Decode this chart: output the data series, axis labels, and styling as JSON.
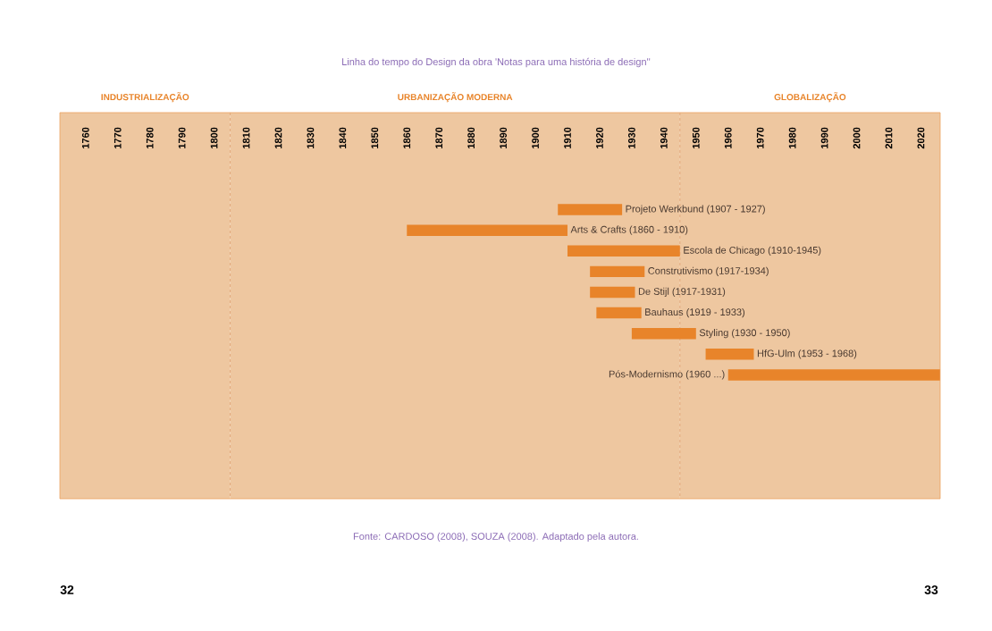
{
  "chart_data": {
    "type": "bar",
    "orientation": "horizontal",
    "title": "Linha do tempo do Design da obra 'Notas para uma história de design''",
    "categories": [
      "Projeto Werkbund (1907 - 1927)",
      "Arts & Crafts (1860 - 1910)",
      "Escola de Chicago (1910-1945)",
      "Construtivismo (1917-1934)",
      "De Stijl (1917-1931)",
      "Bauhaus (1919 - 1933)",
      "Styling (1930 - 1950)",
      "HfG-Ulm (1953 - 1968)",
      "Pós-Modernismo (1960 ...)"
    ],
    "base": [
      1907,
      1860,
      1910,
      1917,
      1917,
      1919,
      1930,
      1953,
      1960
    ],
    "values": [
      20,
      50,
      35,
      17,
      14,
      14,
      20,
      15,
      66
    ],
    "color": "#e8842a",
    "xlim": [
      1752,
      2026
    ],
    "xticks": [
      1760,
      1770,
      1780,
      1790,
      1800,
      1810,
      1820,
      1830,
      1840,
      1850,
      1860,
      1870,
      1880,
      1890,
      1900,
      1910,
      1920,
      1930,
      1940,
      1950,
      1960,
      1970,
      1980,
      1990,
      2000,
      2010,
      2020
    ],
    "bands": [
      {
        "axis": "x",
        "from": 1752,
        "to": 1805,
        "label": "INDUSTRIALIZAÇÃO",
        "color": "#eec7a0"
      },
      {
        "axis": "x",
        "from": 1805,
        "to": 1945,
        "label": "URBANIZAÇÃO MODERNA",
        "color": "#eec7a0"
      },
      {
        "axis": "x",
        "from": 1945,
        "to": 2026,
        "label": "GLOBALIZAÇÃO",
        "color": "#eec7a0"
      }
    ],
    "ref_lines": [
      {
        "axis": "x",
        "value": 1805,
        "color": "#e0a070",
        "line_style": "dashed"
      },
      {
        "axis": "x",
        "value": 1945,
        "color": "#e0a070",
        "line_style": "dashed"
      }
    ],
    "annotations": [
      "Fonte: CARDOSO (2008), SOUZA (2008). Adaptado pela autora.",
      "32",
      "33"
    ]
  }
}
